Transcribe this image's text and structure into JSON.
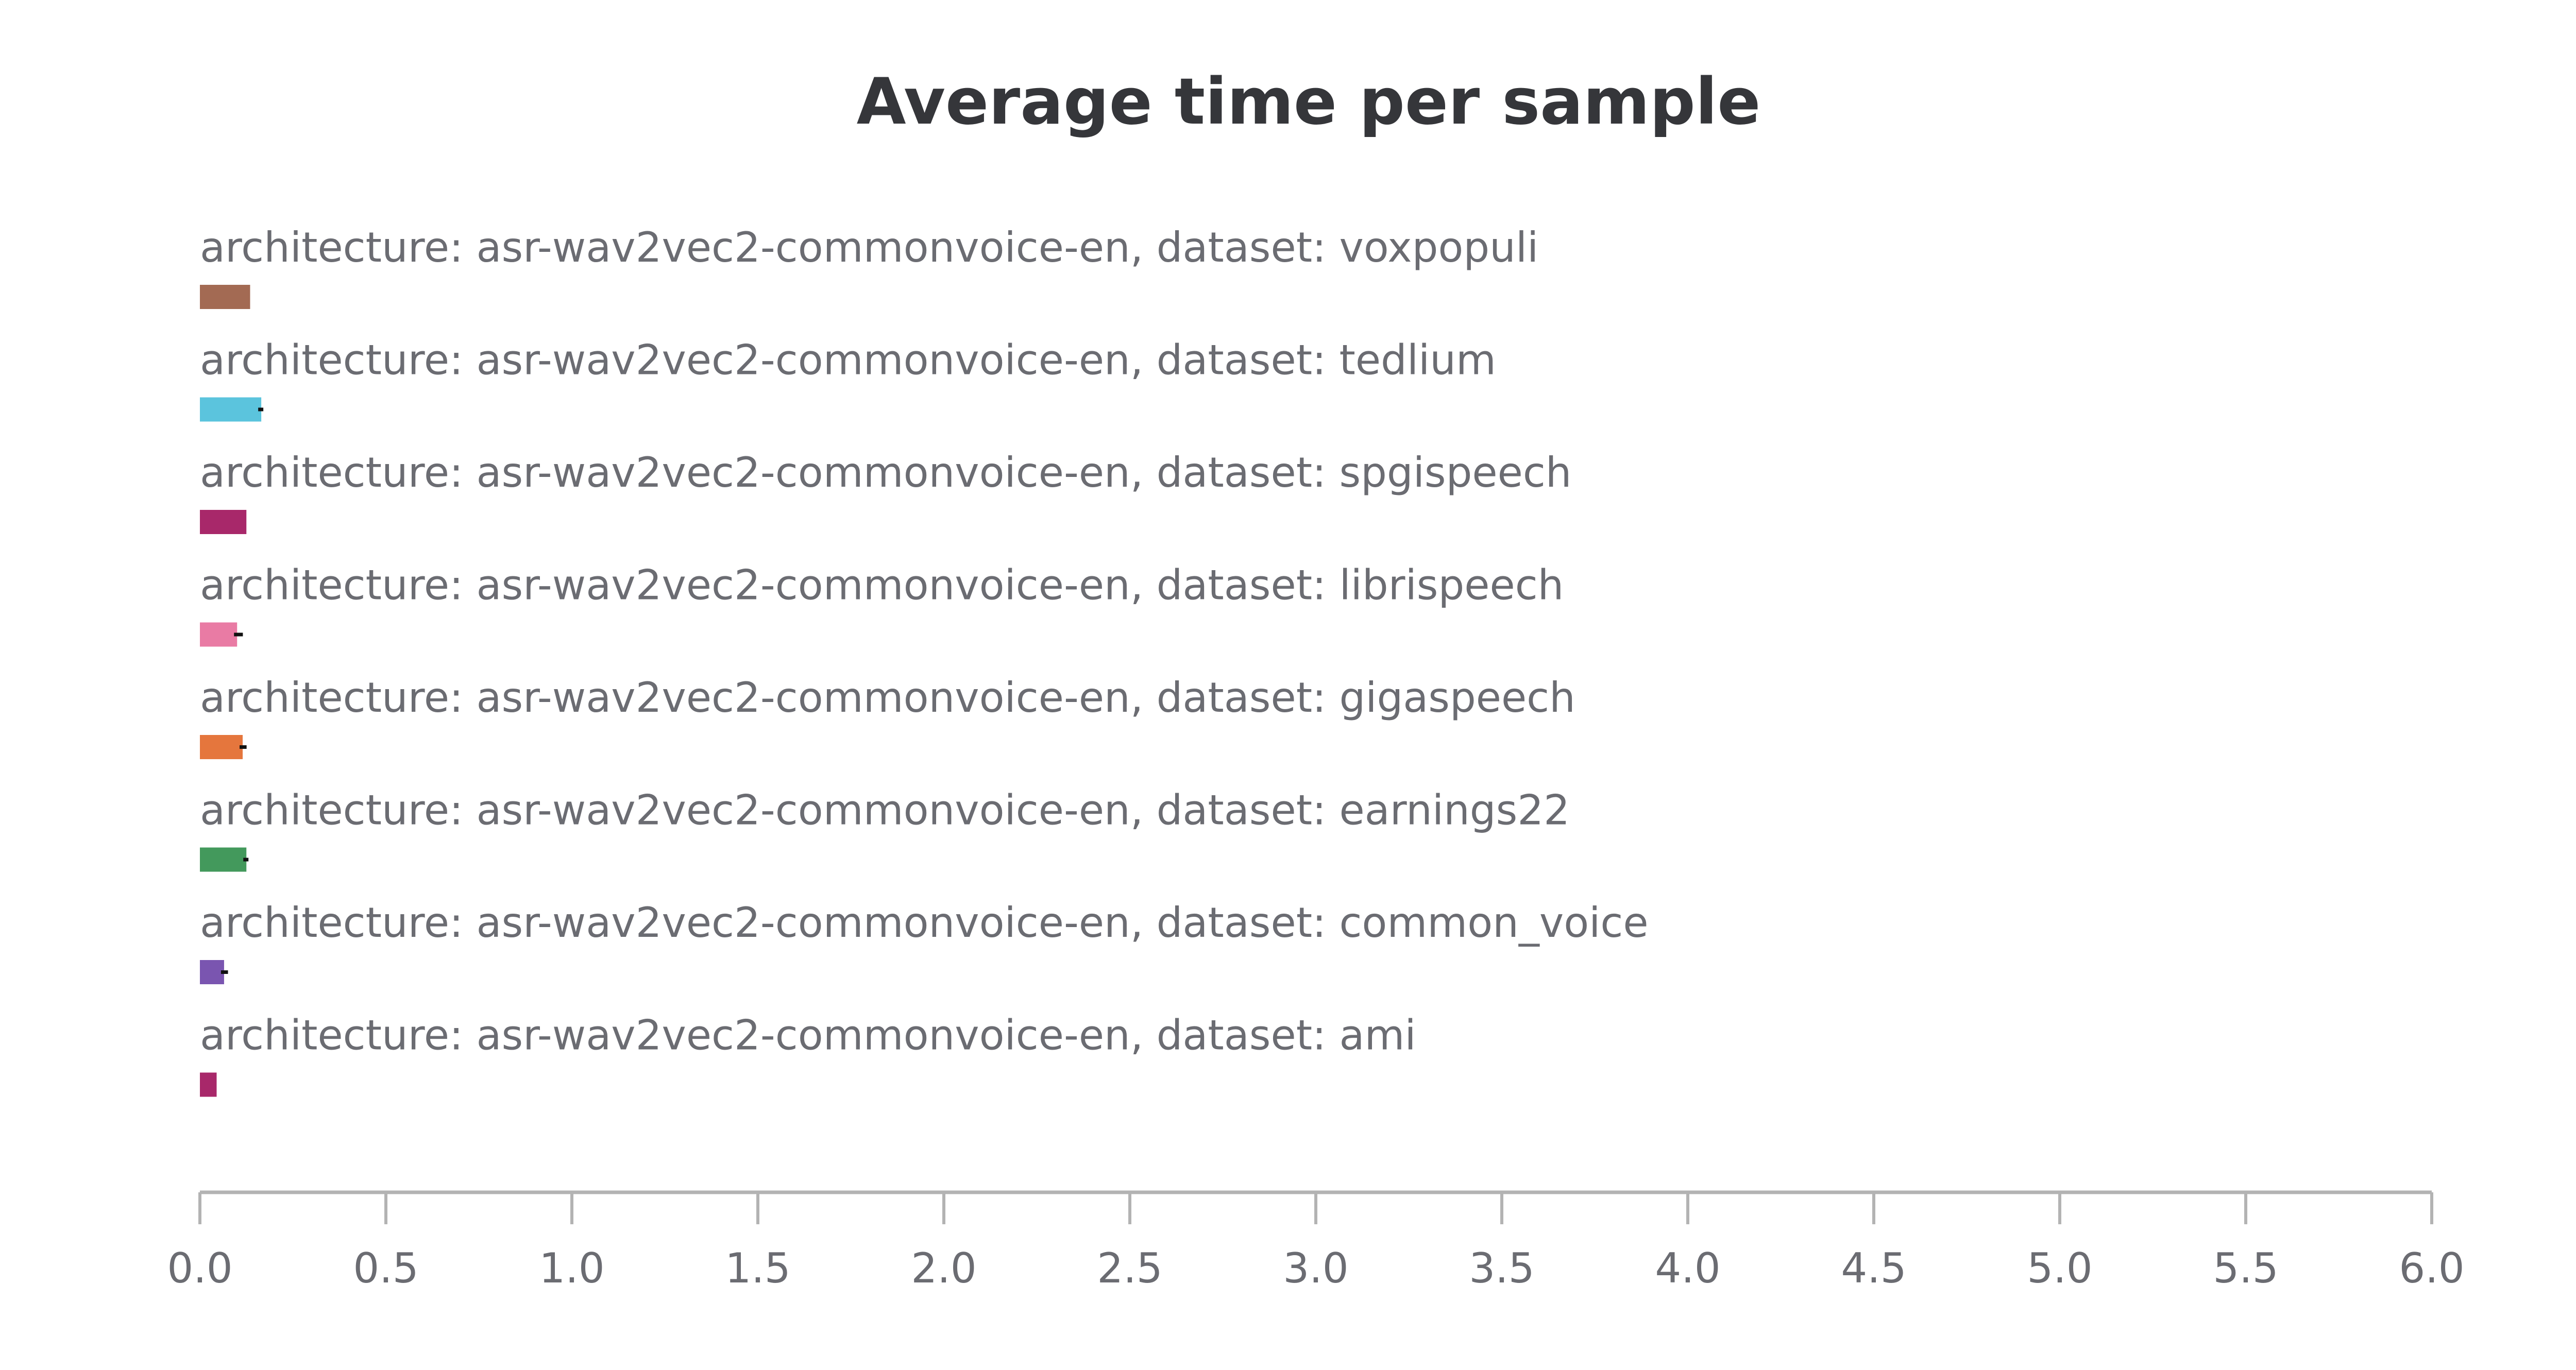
{
  "chart_data": {
    "type": "bar",
    "orientation": "horizontal",
    "title": "Average time per sample",
    "xlabel": "",
    "ylabel": "",
    "xlim": [
      0,
      6
    ],
    "xticks": [
      "0.0",
      "0.5",
      "1.0",
      "1.5",
      "2.0",
      "2.5",
      "3.0",
      "3.5",
      "4.0",
      "4.5",
      "5.0",
      "5.5",
      "6.0"
    ],
    "grid": false,
    "legend": "none",
    "categories": [
      "architecture: asr-wav2vec2-commonvoice-en, dataset: voxpopuli",
      "architecture: asr-wav2vec2-commonvoice-en, dataset: tedlium",
      "architecture: asr-wav2vec2-commonvoice-en, dataset: spgispeech",
      "architecture: asr-wav2vec2-commonvoice-en, dataset: librispeech",
      "architecture: asr-wav2vec2-commonvoice-en, dataset: gigaspeech",
      "architecture: asr-wav2vec2-commonvoice-en, dataset: earnings22",
      "architecture: asr-wav2vec2-commonvoice-en, dataset: common_voice",
      "architecture: asr-wav2vec2-commonvoice-en, dataset: ami"
    ],
    "values": [
      0.135,
      0.165,
      0.125,
      0.1,
      0.115,
      0.125,
      0.065,
      0.045
    ],
    "error_high": [
      null,
      0.165,
      null,
      0.11,
      0.12,
      0.125,
      0.07,
      null
    ],
    "colors": [
      "#a36a53",
      "#5bc4dd",
      "#a8286a",
      "#e97ba4",
      "#e5763d",
      "#43995c",
      "#7a55b0",
      "#a8286a"
    ]
  }
}
